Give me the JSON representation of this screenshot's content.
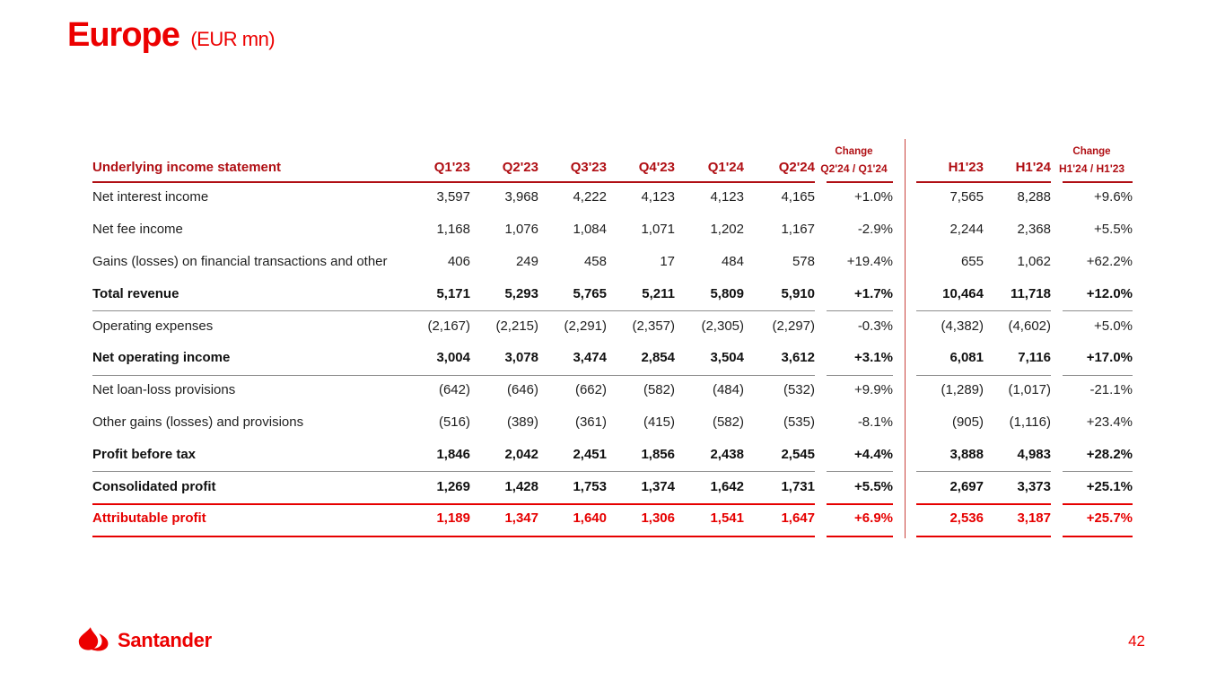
{
  "slide": {
    "title": "Europe",
    "title_unit": "(EUR mn)",
    "page_number": "42",
    "logo_brand": "Santander"
  },
  "colors": {
    "santander_red": "#EC0000",
    "table_header_red": "#B00F14",
    "body_text": "#1F1F1F",
    "rule_gray": "#8E8E8E",
    "divider_red": "#C8423C"
  },
  "table": {
    "header": {
      "label": "Underlying income statement",
      "quarter_cols": [
        "Q1'23",
        "Q2'23",
        "Q3'23",
        "Q4'23",
        "Q1'24",
        "Q2'24"
      ],
      "qoq_change": {
        "line1": "Change",
        "line2": "Q2'24 / Q1'24"
      },
      "half_cols": [
        "H1'23",
        "H1'24"
      ],
      "hoh_change": {
        "line1": "Change",
        "line2": "H1'24 / H1'23"
      }
    },
    "rows": [
      {
        "label": "Net interest income",
        "style": "normal",
        "rule_after": "none",
        "values": [
          "3,597",
          "3,968",
          "4,222",
          "4,123",
          "4,123",
          "4,165"
        ],
        "qoq": "+1.0%",
        "halves": [
          "7,565",
          "8,288"
        ],
        "hoh": "+9.6%"
      },
      {
        "label": "Net fee income",
        "style": "normal",
        "rule_after": "none",
        "values": [
          "1,168",
          "1,076",
          "1,084",
          "1,071",
          "1,202",
          "1,167"
        ],
        "qoq": "-2.9%",
        "halves": [
          "2,244",
          "2,368"
        ],
        "hoh": "+5.5%"
      },
      {
        "label": "Gains (losses) on financial transactions and other",
        "style": "normal",
        "rule_after": "none",
        "values": [
          "406",
          "249",
          "458",
          "17",
          "484",
          "578"
        ],
        "qoq": "+19.4%",
        "halves": [
          "655",
          "1,062"
        ],
        "hoh": "+62.2%"
      },
      {
        "label": "Total revenue",
        "style": "bold",
        "rule_after": "gray",
        "values": [
          "5,171",
          "5,293",
          "5,765",
          "5,211",
          "5,809",
          "5,910"
        ],
        "qoq": "+1.7%",
        "halves": [
          "10,464",
          "11,718"
        ],
        "hoh": "+12.0%"
      },
      {
        "label": "Operating expenses",
        "style": "normal",
        "rule_after": "none",
        "values": [
          "(2,167)",
          "(2,215)",
          "(2,291)",
          "(2,357)",
          "(2,305)",
          "(2,297)"
        ],
        "qoq": "-0.3%",
        "halves": [
          "(4,382)",
          "(4,602)"
        ],
        "hoh": "+5.0%"
      },
      {
        "label": "Net operating income",
        "style": "bold",
        "rule_after": "gray",
        "values": [
          "3,004",
          "3,078",
          "3,474",
          "2,854",
          "3,504",
          "3,612"
        ],
        "qoq": "+3.1%",
        "halves": [
          "6,081",
          "7,116"
        ],
        "hoh": "+17.0%"
      },
      {
        "label": "Net loan-loss provisions",
        "style": "normal",
        "rule_after": "none",
        "values": [
          "(642)",
          "(646)",
          "(662)",
          "(582)",
          "(484)",
          "(532)"
        ],
        "qoq": "+9.9%",
        "halves": [
          "(1,289)",
          "(1,017)"
        ],
        "hoh": "-21.1%"
      },
      {
        "label": "Other gains (losses) and provisions",
        "style": "normal",
        "rule_after": "none",
        "values": [
          "(516)",
          "(389)",
          "(361)",
          "(415)",
          "(582)",
          "(535)"
        ],
        "qoq": "-8.1%",
        "halves": [
          "(905)",
          "(1,116)"
        ],
        "hoh": "+23.4%"
      },
      {
        "label": "Profit before tax",
        "style": "bold",
        "rule_after": "gray",
        "values": [
          "1,846",
          "2,042",
          "2,451",
          "1,856",
          "2,438",
          "2,545"
        ],
        "qoq": "+4.4%",
        "halves": [
          "3,888",
          "4,983"
        ],
        "hoh": "+28.2%"
      },
      {
        "label": "Consolidated profit",
        "style": "bold",
        "rule_after": "red",
        "values": [
          "1,269",
          "1,428",
          "1,753",
          "1,374",
          "1,642",
          "1,731"
        ],
        "qoq": "+5.5%",
        "halves": [
          "2,697",
          "3,373"
        ],
        "hoh": "+25.1%"
      },
      {
        "label": "Attributable profit",
        "style": "bold-red",
        "rule_after": "red",
        "values": [
          "1,189",
          "1,347",
          "1,640",
          "1,306",
          "1,541",
          "1,647"
        ],
        "qoq": "+6.9%",
        "halves": [
          "2,536",
          "3,187"
        ],
        "hoh": "+25.7%"
      }
    ]
  }
}
